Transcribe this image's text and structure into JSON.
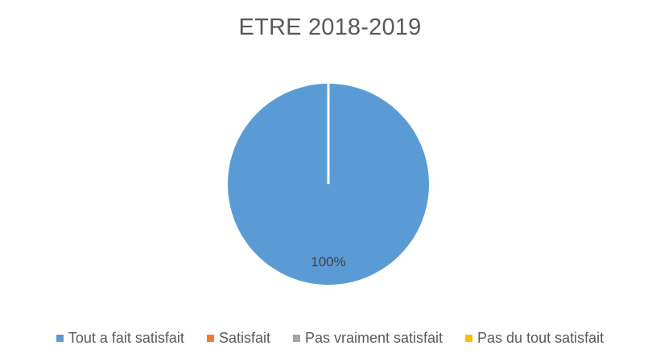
{
  "chart_data": {
    "type": "pie",
    "title": "ETRE 2018-2019",
    "categories": [
      "Tout a fait satisfait",
      "Satisfait",
      "Pas vraiment satisfait",
      "Pas du tout satisfait"
    ],
    "values": [
      100,
      0,
      0,
      0
    ],
    "colors": [
      "#5B9BD5",
      "#ED7D31",
      "#A5A5A5",
      "#FFC000"
    ],
    "data_labels": [
      "100%",
      "",
      "",
      ""
    ],
    "legend_position": "bottom"
  }
}
